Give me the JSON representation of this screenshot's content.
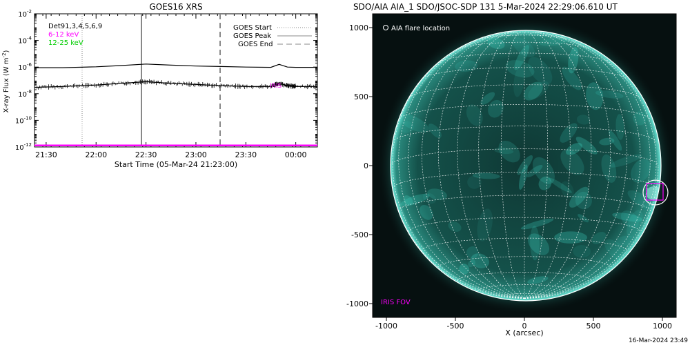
{
  "left_panel": {
    "title": "GOES16 XRS",
    "ylabel": "X-ray Flux (W m",
    "ylabel_sup": "-2",
    "ylabel_close": ")",
    "xlabel": "Start Time (05-Mar-24 21:23:00)",
    "legend_left": [
      {
        "text": "Det91,3,4,5,6,9",
        "color": "#000000"
      },
      {
        "text": "6-12 keV",
        "color": "#ff00ff"
      },
      {
        "text": "12-25 keV",
        "color": "#00cc00"
      }
    ],
    "legend_right": [
      {
        "text": "GOES Start",
        "style": "dotted"
      },
      {
        "text": "GOES Peak",
        "style": "solid"
      },
      {
        "text": "GOES End",
        "style": "dashed"
      }
    ],
    "iris_label": "IRIS"
  },
  "right_panel": {
    "title": "SDO/AIA AIA_1 SDO/JSOC-SDP 131  5-Mar-2024 22:29:06.610 UT",
    "flare_label": "AIA flare location",
    "fov_label": "IRIS FOV",
    "xlabel": "X (arcsec)",
    "timestamp": "16-Mar-2024 23:49"
  },
  "colors": {
    "magenta": "#ff00ff",
    "green": "#00cc00",
    "sun": "#2fd3c4",
    "disk_bg": "#0b2a28",
    "space": "#061010"
  },
  "chart_data": [
    {
      "type": "line",
      "title": "GOES16 XRS",
      "xlabel": "Start Time (05-Mar-24 21:23:00)",
      "ylabel": "X-ray Flux (W m-2)",
      "yscale": "log",
      "ylim": [
        1e-12,
        0.01
      ],
      "y_tick_labels": [
        "10-12",
        "10-10",
        "10-8",
        "10-6",
        "10-4",
        "10-2"
      ],
      "xlim": [
        "21:23",
        "00:13"
      ],
      "x_tick_labels": [
        "21:30",
        "22:00",
        "22:30",
        "23:00",
        "23:30",
        "00:00"
      ],
      "grid": false,
      "legend": [
        "GOES Start",
        "GOES Peak",
        "GOES End"
      ],
      "vertical_markers": {
        "GOES Start": "21:53",
        "GOES Peak": "22:30",
        "GOES End": "23:17"
      },
      "series": [
        {
          "color": "#000000",
          "x": [
            "21:23",
            "21:40",
            "22:00",
            "22:15",
            "22:30",
            "22:45",
            "23:00",
            "23:15",
            "23:30",
            "23:45",
            "23:50",
            "23:55",
            "00:00",
            "00:13"
          ],
          "values": [
            9e-07,
            9e-07,
            1.05e-06,
            1.3e-06,
            1.7e-06,
            1.4e-06,
            1.2e-06,
            1.1e-06,
            1e-06,
            9.5e-07,
            1.6e-06,
            1e-06,
            9.5e-07,
            9.5e-07
          ]
        },
        {
          "color": "#000000",
          "x": [
            "21:23",
            "21:40",
            "22:00",
            "22:15",
            "22:30",
            "22:45",
            "23:00",
            "23:15",
            "23:30",
            "23:45",
            "23:50",
            "23:55",
            "00:00",
            "00:13"
          ],
          "values": [
            3e-08,
            3.5e-08,
            4.5e-08,
            6e-08,
            8e-08,
            6e-08,
            5e-08,
            4e-08,
            3.5e-08,
            3.5e-08,
            6e-08,
            4e-08,
            3.5e-08,
            3.5e-08
          ]
        },
        {
          "name": "6-12 keV",
          "color": "#ff00ff",
          "x": [
            "21:23",
            "00:13"
          ],
          "values": [
            1.3e-12,
            1.3e-12
          ]
        }
      ]
    },
    {
      "type": "scatter",
      "title": "SDO/AIA AIA_1 SDO/JSOC-SDP 131  5-Mar-2024 22:29:06.610 UT",
      "xlabel": "X (arcsec)",
      "xlim": [
        -1100,
        1100
      ],
      "ylim": [
        -1100,
        1100
      ],
      "x_tick_labels": [
        "-1000",
        "-500",
        "0",
        "500",
        "1000"
      ],
      "y_tick_labels": [
        "1000",
        "500",
        "0",
        "-500",
        "-1000"
      ],
      "solar_radius_arcsec": 970,
      "flare_location": {
        "x": 940,
        "y": -200
      },
      "iris_fov": {
        "x_range": [
          880,
          1000
        ],
        "y_range": [
          -260,
          -140
        ]
      }
    }
  ]
}
